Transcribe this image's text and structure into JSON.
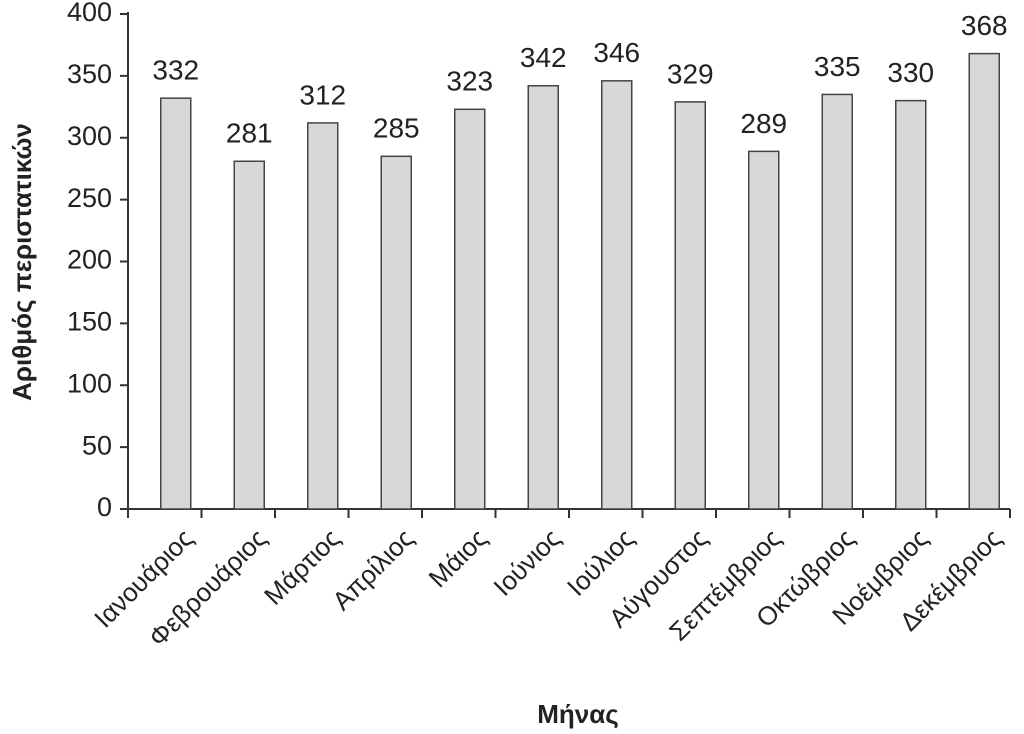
{
  "chart_data": {
    "type": "bar",
    "x_label": "Μήνας",
    "y_label": "Αριθμός περιστατικών",
    "categories": [
      "Ιανουάριος",
      "Φεβρουάριος",
      "Μάρτιος",
      "Απρίλιος",
      "Μάιος",
      "Ιούνιος",
      "Ιούλιος",
      "Αύγουστος",
      "Σεπτέμβριος",
      "Οκτώβριος",
      "Νοέμβριος",
      "Δεκέμβριος"
    ],
    "values": [
      332,
      281,
      312,
      285,
      323,
      342,
      346,
      329,
      289,
      335,
      330,
      368
    ],
    "color": "#d8d8d8",
    "ylim": [
      0,
      400
    ],
    "yticks": [
      0,
      50,
      100,
      150,
      200,
      250,
      300,
      350,
      400
    ],
    "grid": false
  }
}
